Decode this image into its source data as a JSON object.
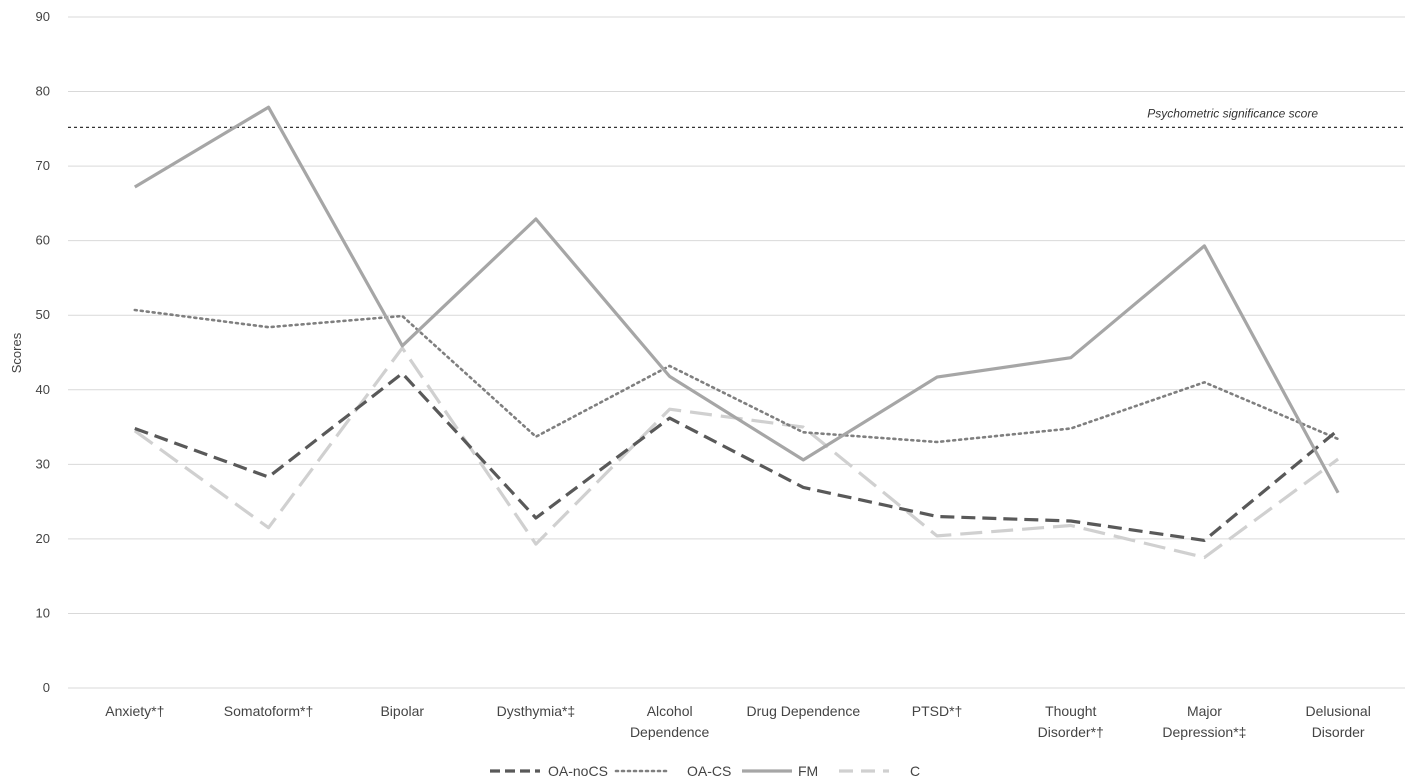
{
  "chart_data": {
    "type": "line",
    "title": "",
    "xlabel": "",
    "ylabel": "Scores",
    "ylim": [
      0,
      90
    ],
    "y_ticks": [
      0,
      10,
      20,
      30,
      40,
      50,
      60,
      70,
      80,
      90
    ],
    "grid": "horizontal",
    "legend_position": "bottom",
    "categories": [
      [
        "Anxiety*†"
      ],
      [
        "Somatoform*†"
      ],
      [
        "Bipolar"
      ],
      [
        "Dysthymia*‡"
      ],
      [
        "Alcohol",
        "Dependence"
      ],
      [
        "Drug Dependence"
      ],
      [
        "PTSD*†"
      ],
      [
        "Thought",
        "Disorder*†"
      ],
      [
        "Major",
        "Depression*‡"
      ],
      [
        "Delusional",
        "Disorder"
      ]
    ],
    "series": [
      {
        "name": "OA-noCS",
        "style": "dashed",
        "color": "#595959",
        "values": [
          34.8,
          28.3,
          42.2,
          22.8,
          36.2,
          26.9,
          23.0,
          22.4,
          19.8,
          34.6
        ]
      },
      {
        "name": "OA-CS",
        "style": "dotted",
        "color": "#7f7f7f",
        "values": [
          50.7,
          48.4,
          49.9,
          33.7,
          43.2,
          34.3,
          33.0,
          34.8,
          41.0,
          33.4
        ]
      },
      {
        "name": "FM",
        "style": "solid",
        "color": "#a6a6a6",
        "values": [
          67.2,
          77.9,
          45.9,
          62.9,
          41.8,
          30.6,
          41.7,
          44.3,
          59.3,
          26.2
        ]
      },
      {
        "name": "C",
        "style": "longdash",
        "color": "#d0d0d0",
        "values": [
          34.5,
          21.5,
          45.6,
          19.3,
          37.4,
          35.0,
          20.4,
          21.8,
          17.5,
          30.7
        ]
      }
    ],
    "reference_line": {
      "value": 75.2,
      "label": "Psychometric significance score"
    }
  }
}
